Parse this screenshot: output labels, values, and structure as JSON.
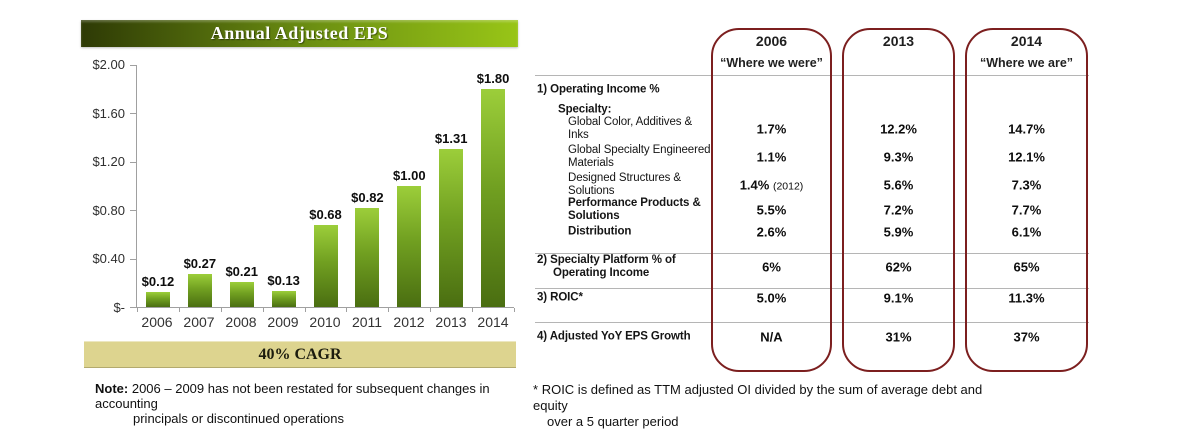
{
  "chart_data": [
    {
      "type": "bar",
      "title": "Annual Adjusted EPS",
      "categories": [
        "2006",
        "2007",
        "2008",
        "2009",
        "2010",
        "2011",
        "2012",
        "2013",
        "2014"
      ],
      "values": [
        0.12,
        0.27,
        0.21,
        0.13,
        0.68,
        0.82,
        1.0,
        1.31,
        1.8
      ],
      "value_labels": [
        "$0.12",
        "$0.27",
        "$0.21",
        "$0.13",
        "$0.68",
        "$0.82",
        "$1.00",
        "$1.31",
        "$1.80"
      ],
      "y_ticks": [
        "$2.00",
        "$1.60",
        "$1.20",
        "$0.80",
        "$0.40",
        "$-"
      ],
      "ylim": [
        0,
        2.0
      ],
      "xlabel": "",
      "ylabel": "",
      "grid": false,
      "legend": false,
      "annotation": "40% CAGR"
    },
    {
      "type": "table",
      "columns": [
        {
          "year": "2006",
          "subtitle": "“Where we were”"
        },
        {
          "year": "2013",
          "subtitle": ""
        },
        {
          "year": "2014",
          "subtitle": "“Where we are”"
        }
      ],
      "rows": [
        {
          "label": "1) Operating Income %",
          "values": null
        },
        {
          "label": "Specialty:",
          "values": null
        },
        {
          "label": "Global Color, Additives & Inks",
          "values": [
            "1.7%",
            "12.2%",
            "14.7%"
          ]
        },
        {
          "label": "Global Specialty Engineered Materials",
          "values": [
            "1.1%",
            "9.3%",
            "12.1%"
          ]
        },
        {
          "label": "Designed Structures & Solutions",
          "values": [
            "1.4%",
            "5.6%",
            "7.3%"
          ],
          "note": "(2012)"
        },
        {
          "label": "Performance Products & Solutions",
          "values": [
            "5.5%",
            "7.2%",
            "7.7%"
          ]
        },
        {
          "label": "Distribution",
          "values": [
            "2.6%",
            "5.9%",
            "6.1%"
          ]
        },
        {
          "label": "2) Specialty Platform % of Operating Income",
          "values": [
            "6%",
            "62%",
            "65%"
          ]
        },
        {
          "label": "3) ROIC*",
          "values": [
            "5.0%",
            "9.1%",
            "11.3%"
          ]
        },
        {
          "label": "4) Adjusted YoY EPS Growth",
          "values": [
            "N/A",
            "31%",
            "37%"
          ]
        }
      ]
    }
  ],
  "notes": {
    "left": {
      "label": "Note:",
      "line1": "2006 – 2009 has not been restated for subsequent changes in accounting",
      "line2": "principals or discontinued operations"
    },
    "right": {
      "marker": "*",
      "line1": "ROIC is defined as TTM adjusted OI divided by the sum of average debt and equity",
      "line2": "over a 5 quarter period"
    }
  },
  "colors": {
    "bar_top": "#9cce3a",
    "bar_bottom": "#4a6e11",
    "banner_dark": "#2e3a05",
    "banner_bright": "#98c517",
    "cagr_bg": "#ddd48f",
    "column_outline": "#7c1f1f"
  }
}
